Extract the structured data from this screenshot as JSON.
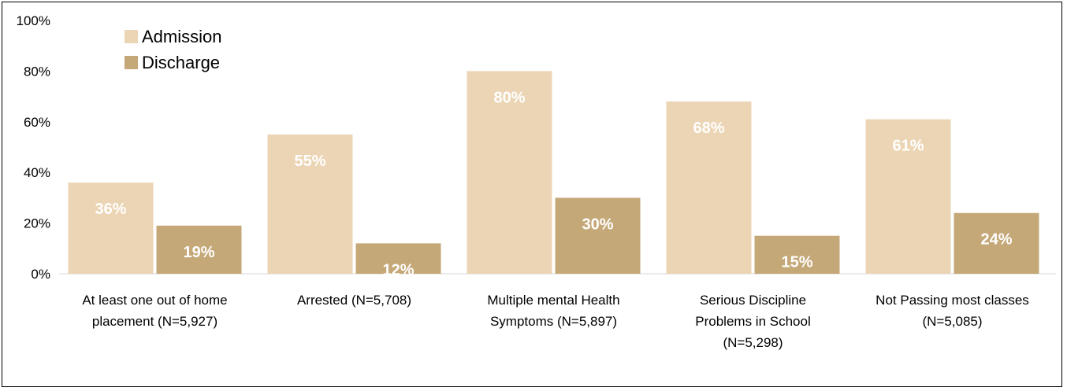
{
  "chart_data": {
    "type": "bar",
    "title": "",
    "xlabel": "",
    "ylabel": "",
    "ylim": [
      0,
      100
    ],
    "yticks": [
      0,
      20,
      40,
      60,
      80,
      100
    ],
    "ytick_labels": [
      "0%",
      "20%",
      "40%",
      "60%",
      "80%",
      "100%"
    ],
    "grid": false,
    "legend": "top-left",
    "categories": [
      [
        "At least one out of home",
        "placement (N=5,927)"
      ],
      [
        "Arrested (N=5,708)"
      ],
      [
        "Multiple mental Health",
        "Symptoms (N=5,897)"
      ],
      [
        "Serious Discipline",
        "Problems in School",
        "(N=5,298)"
      ],
      [
        "Not Passing most classes",
        "(N=5,085)"
      ]
    ],
    "series": [
      {
        "name": "Admission",
        "color": "#ecd5b5",
        "values": [
          36,
          55,
          80,
          68,
          61
        ],
        "labels": [
          "36%",
          "55%",
          "80%",
          "68%",
          "61%"
        ]
      },
      {
        "name": "Discharge",
        "color": "#c5a878",
        "values": [
          19,
          12,
          30,
          15,
          24
        ],
        "labels": [
          "19%",
          "12%",
          "30%",
          "15%",
          "24%"
        ]
      }
    ]
  }
}
